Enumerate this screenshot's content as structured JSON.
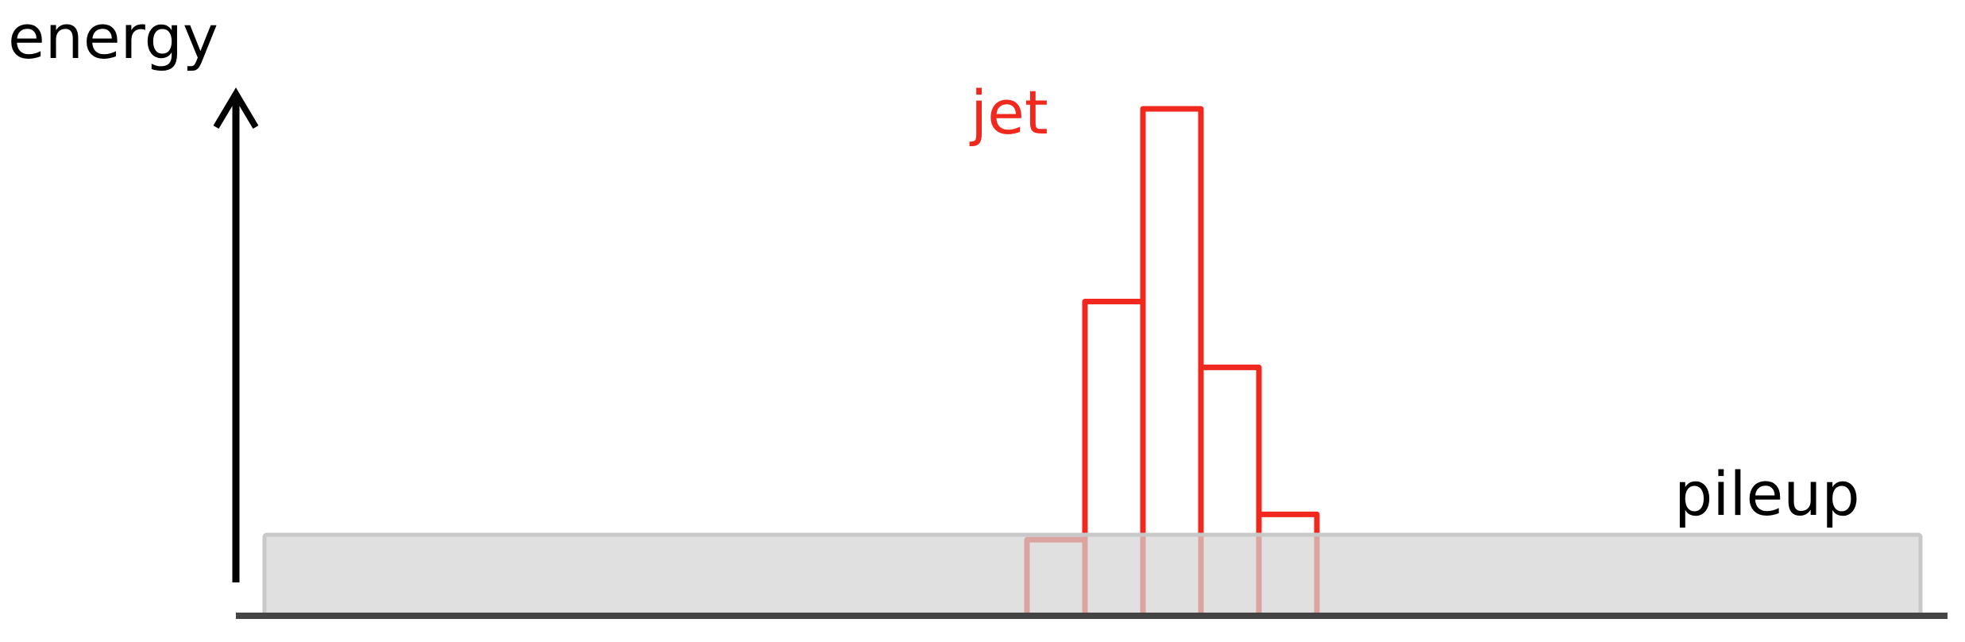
{
  "labels": {
    "y_axis": "energy",
    "jet": "jet",
    "pileup": "pileup"
  },
  "jet_histogram": {
    "bar_heights_relative": [
      0.15,
      0.62,
      1.0,
      0.49,
      0.2
    ],
    "bar_count": 5
  },
  "pileup_level_relative": 0.16,
  "colors": {
    "jet": "#f0281e",
    "axis": "#000000",
    "baseline": "#444444",
    "pileup_fill": "#dcdcdc",
    "pileup_stroke": "#cccccc"
  }
}
